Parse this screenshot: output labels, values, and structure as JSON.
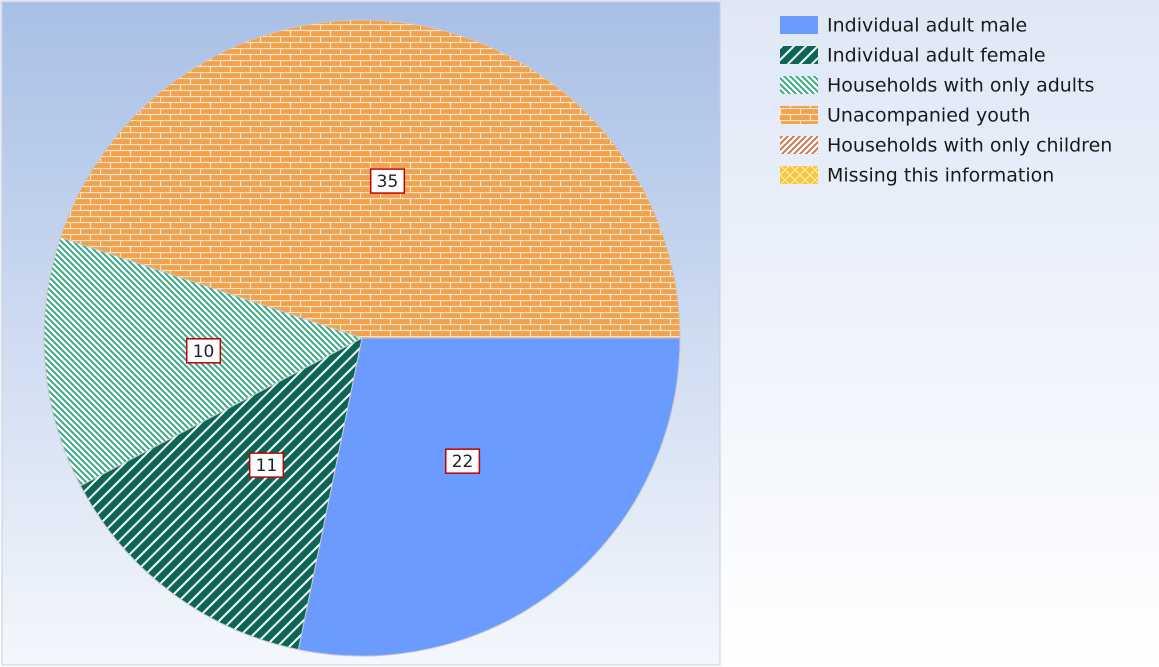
{
  "chart_data": {
    "type": "pie",
    "categories": [
      "Individual adult male",
      "Individual adult female",
      "Households with only adults",
      "Unacompanied youth",
      "Households with only children",
      "Missing this information"
    ],
    "values": [
      22,
      11,
      10,
      35,
      0,
      0
    ],
    "colors": [
      "#6b9bff",
      "#0b6656",
      "#3aa882",
      "#f0a24e",
      "#c97a52",
      "#f5c640"
    ]
  }
}
